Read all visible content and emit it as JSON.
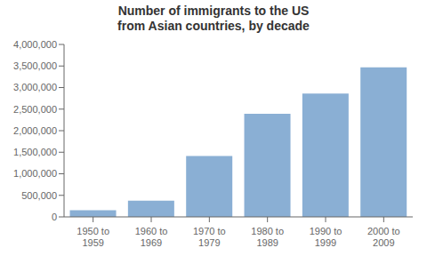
{
  "chart_data": {
    "type": "bar",
    "title": "Number of immigrants to the US\nfrom Asian countries, by decade",
    "categories": [
      "1950 to\n1959",
      "1960 to\n1969",
      "1970 to\n1979",
      "1980 to\n1989",
      "1990 to\n1999",
      "2000 to\n2009"
    ],
    "values": [
      153000,
      375000,
      1410000,
      2390000,
      2860000,
      3470000
    ],
    "color": "#8aafd4",
    "ylim": [
      0,
      4000000
    ],
    "yticks": [
      0,
      {
        "value": 500000,
        "label": "500,000"
      },
      {
        "value": 1000000,
        "label": "1,000,000"
      },
      {
        "value": 1500000,
        "label": "1,500,000"
      },
      {
        "value": 2000000,
        "label": "2,000,000"
      },
      {
        "value": 2500000,
        "label": "2,500,000"
      },
      {
        "value": 3000000,
        "label": "3,000,000"
      },
      {
        "value": 3500000,
        "label": "3,500,000"
      },
      {
        "value": 4000000,
        "label": "4,000,000"
      }
    ],
    "grid": false
  }
}
